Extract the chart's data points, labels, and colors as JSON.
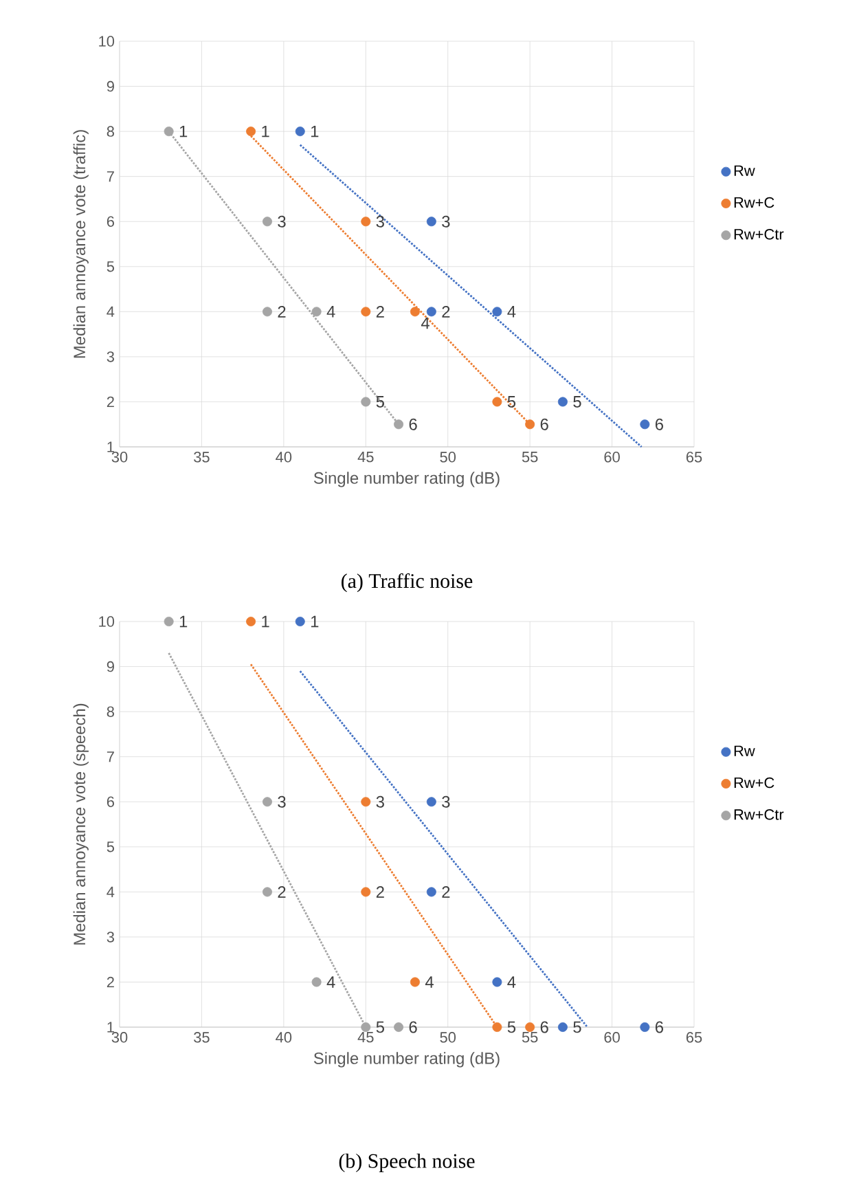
{
  "chart_data": [
    {
      "type": "scatter",
      "title": "(a) Traffic noise",
      "xlabel": "Single number rating (dB)",
      "ylabel": "Median annoyance vote (traffic)",
      "xlim": [
        30,
        65
      ],
      "ylim": [
        1,
        10
      ],
      "xticks": [
        30,
        35,
        40,
        45,
        50,
        55,
        60,
        65
      ],
      "yticks": [
        1,
        2,
        3,
        4,
        5,
        6,
        7,
        8,
        9,
        10
      ],
      "grid": true,
      "legend": "right",
      "series": [
        {
          "name": "Rw",
          "color": "#4472c4",
          "marker": "circle",
          "x": [
            41,
            49,
            49,
            53,
            57,
            62
          ],
          "values": [
            8,
            4,
            6,
            4,
            2,
            1.5
          ]
        },
        {
          "name": "Rw+C",
          "color": "#ed7d31",
          "marker": "circle",
          "x": [
            38,
            45,
            45,
            48,
            53,
            55
          ],
          "values": [
            8,
            4,
            6,
            4,
            2,
            1.5
          ]
        },
        {
          "name": "Rw+Ctr",
          "color": "#a5a5a5",
          "marker": "circle",
          "x": [
            33,
            39,
            39,
            42,
            45,
            47
          ],
          "values": [
            8,
            4,
            6,
            4,
            2,
            1.5
          ]
        },
        {
          "type": "line",
          "color": "#4472c4",
          "line_style": "dotted",
          "marker": "none",
          "x": [
            41,
            61.8
          ],
          "values": [
            7.7,
            1
          ]
        },
        {
          "type": "line",
          "color": "#ed7d31",
          "line_style": "dotted",
          "marker": "none",
          "x": [
            38,
            55
          ],
          "values": [
            7.9,
            1.5
          ]
        },
        {
          "type": "line",
          "color": "#a5a5a5",
          "line_style": "dotted",
          "marker": "none",
          "x": [
            33,
            47
          ],
          "values": [
            8,
            1.5
          ]
        }
      ],
      "annotations": [
        {
          "text": "1",
          "x": 41,
          "y": 8
        },
        {
          "text": "2",
          "x": 49,
          "y": 4
        },
        {
          "text": "3",
          "x": 49,
          "y": 6
        },
        {
          "text": "4",
          "x": 53,
          "y": 4
        },
        {
          "text": "5",
          "x": 57,
          "y": 2
        },
        {
          "text": "6",
          "x": 62,
          "y": 1.5
        },
        {
          "text": "1",
          "x": 38,
          "y": 8
        },
        {
          "text": "2",
          "x": 45,
          "y": 4
        },
        {
          "text": "3",
          "x": 45,
          "y": 6
        },
        {
          "text": "4",
          "x": 48,
          "y": 4
        },
        {
          "text": "5",
          "x": 53,
          "y": 2
        },
        {
          "text": "6",
          "x": 55,
          "y": 1.5
        },
        {
          "text": "1",
          "x": 33,
          "y": 8
        },
        {
          "text": "2",
          "x": 39,
          "y": 4
        },
        {
          "text": "3",
          "x": 39,
          "y": 6
        },
        {
          "text": "4",
          "x": 42,
          "y": 4
        },
        {
          "text": "5",
          "x": 45,
          "y": 2
        },
        {
          "text": "6",
          "x": 47,
          "y": 1.5
        }
      ]
    },
    {
      "type": "scatter",
      "title": "(b) Speech noise",
      "xlabel": "Single number rating (dB)",
      "ylabel": "Median annoyance vote (speech)",
      "xlim": [
        30,
        65
      ],
      "ylim": [
        1,
        10
      ],
      "xticks": [
        30,
        35,
        40,
        45,
        50,
        55,
        60,
        65
      ],
      "yticks": [
        1,
        2,
        3,
        4,
        5,
        6,
        7,
        8,
        9,
        10
      ],
      "grid": true,
      "legend": "right",
      "series": [
        {
          "name": "Rw",
          "color": "#4472c4",
          "marker": "circle",
          "x": [
            41,
            49,
            49,
            53,
            57,
            62
          ],
          "values": [
            10,
            4,
            6,
            2,
            1,
            1
          ]
        },
        {
          "name": "Rw+C",
          "color": "#ed7d31",
          "marker": "circle",
          "x": [
            38,
            45,
            45,
            48,
            53,
            55
          ],
          "values": [
            10,
            4,
            6,
            2,
            1,
            1
          ]
        },
        {
          "name": "Rw+Ctr",
          "color": "#a5a5a5",
          "marker": "circle",
          "x": [
            33,
            39,
            39,
            42,
            45,
            47
          ],
          "values": [
            10,
            4,
            6,
            2,
            1,
            1
          ]
        },
        {
          "type": "line",
          "color": "#4472c4",
          "line_style": "dotted",
          "marker": "none",
          "x": [
            41,
            58.5
          ],
          "values": [
            8.9,
            1
          ]
        },
        {
          "type": "line",
          "color": "#ed7d31",
          "line_style": "dotted",
          "marker": "none",
          "x": [
            38,
            53
          ],
          "values": [
            9.05,
            1
          ]
        },
        {
          "type": "line",
          "color": "#a5a5a5",
          "line_style": "dotted",
          "marker": "none",
          "x": [
            33,
            45
          ],
          "values": [
            9.3,
            1
          ]
        }
      ],
      "annotations": [
        {
          "text": "1",
          "x": 41,
          "y": 10
        },
        {
          "text": "2",
          "x": 49,
          "y": 4
        },
        {
          "text": "3",
          "x": 49,
          "y": 6
        },
        {
          "text": "4",
          "x": 53,
          "y": 2
        },
        {
          "text": "5",
          "x": 57,
          "y": 1
        },
        {
          "text": "6",
          "x": 62,
          "y": 1
        },
        {
          "text": "1",
          "x": 38,
          "y": 10
        },
        {
          "text": "2",
          "x": 45,
          "y": 4
        },
        {
          "text": "3",
          "x": 45,
          "y": 6
        },
        {
          "text": "4",
          "x": 48,
          "y": 2
        },
        {
          "text": "5",
          "x": 53,
          "y": 1
        },
        {
          "text": "6",
          "x": 55,
          "y": 1
        },
        {
          "text": "1",
          "x": 33,
          "y": 10
        },
        {
          "text": "2",
          "x": 39,
          "y": 4
        },
        {
          "text": "3",
          "x": 39,
          "y": 6
        },
        {
          "text": "4",
          "x": 42,
          "y": 2
        },
        {
          "text": "5",
          "x": 45,
          "y": 1
        },
        {
          "text": "6",
          "x": 47,
          "y": 1
        }
      ]
    }
  ]
}
